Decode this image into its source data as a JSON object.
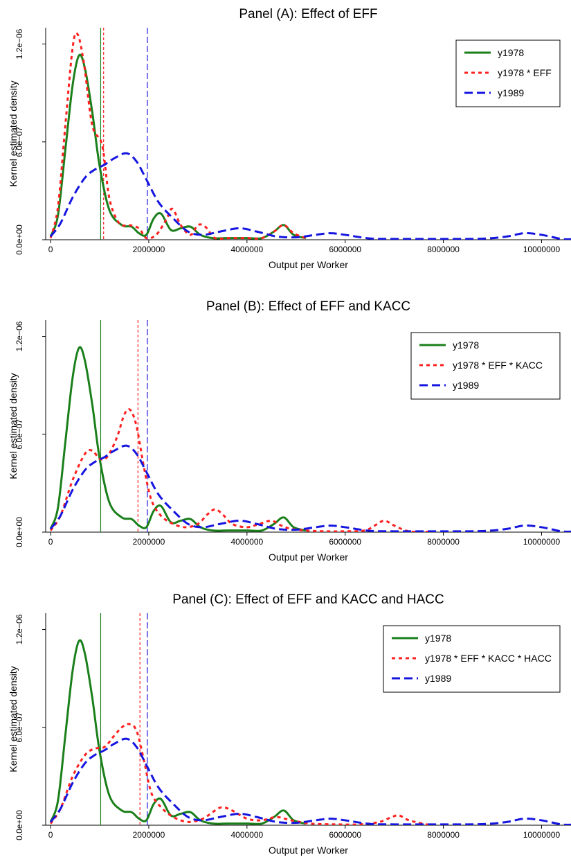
{
  "chart_data": [
    {
      "type": "line",
      "title": "Panel (A): Effect of EFF",
      "xlabel": "Output per Worker",
      "ylabel": "Kernel estimated density",
      "xlim": [
        -100000,
        10600000
      ],
      "ylim": [
        0,
        1.3e-06
      ],
      "xticks": [
        0,
        2000000,
        4000000,
        6000000,
        8000000,
        10000000
      ],
      "xtick_labels": [
        "0",
        "2000000",
        "4000000",
        "6000000",
        "8000000",
        "10000000"
      ],
      "yticks": [
        0,
        6e-07,
        1.2e-06
      ],
      "ytick_labels": [
        "0.0e+00",
        "6.0e−07",
        "1.2e−06"
      ],
      "legend_position": "top-right",
      "grid": false,
      "series": [
        {
          "name": "y1978",
          "color": "#1a7f1a",
          "dash": "solid",
          "x": [
            0,
            150000,
            300000,
            450000,
            580000,
            700000,
            850000,
            1000000,
            1200000,
            1450000,
            1650000,
            1800000,
            1950000,
            2100000,
            2250000,
            2450000,
            2650000,
            2850000,
            3050000,
            3300000,
            3600000,
            4000000,
            4300000,
            4550000,
            4750000,
            4950000,
            5200000
          ],
          "y": [
            2e-08,
            1.5e-07,
            5.5e-07,
            9.5e-07,
            1.13e-06,
            1.05e-06,
            7.8e-07,
            4.5e-07,
            1.8e-07,
            9e-08,
            8e-08,
            4e-08,
            3e-08,
            1.3e-07,
            1.6e-07,
            6e-08,
            7e-08,
            8e-08,
            3e-08,
            1e-08,
            1e-08,
            1e-08,
            1e-08,
            5e-08,
            9e-08,
            3e-08,
            1e-08
          ]
        },
        {
          "name": "y1978 * EFF",
          "color": "#ff2020",
          "dash": "dotted",
          "x": [
            0,
            150000,
            300000,
            450000,
            550000,
            680000,
            850000,
            1050000,
            1200000,
            1400000,
            1600000,
            1800000,
            1950000,
            2150000,
            2350000,
            2480000,
            2650000,
            2850000,
            3000000,
            3150000,
            3350000,
            3600000,
            4000000,
            4300000,
            4550000,
            4750000,
            4950000,
            5200000
          ],
          "y": [
            1e-08,
            2e-07,
            7e-07,
            1.18e-06,
            1.26e-06,
            1.08e-06,
            7e-07,
            5.8e-07,
            2.5e-07,
            1e-07,
            9e-08,
            7e-08,
            1e-08,
            3e-08,
            1.2e-07,
            1.9e-07,
            9e-08,
            3e-08,
            9e-08,
            8e-08,
            1e-08,
            1e-08,
            1e-08,
            1e-08,
            5e-08,
            9e-08,
            4e-08,
            1e-08
          ]
        },
        {
          "name": "y1989",
          "color": "#1515e0",
          "dash": "dashed",
          "x": [
            0,
            200000,
            450000,
            700000,
            900000,
            1100000,
            1300000,
            1550000,
            1750000,
            1950000,
            2200000,
            2500000,
            2800000,
            3100000,
            3450000,
            3850000,
            4200000,
            4600000,
            5000000,
            5400000,
            5700000,
            6000000,
            6500000,
            7000000,
            7500000,
            8000000,
            8500000,
            8900000,
            9300000,
            9650000,
            10000000,
            10400000,
            10600000
          ],
          "y": [
            2e-08,
            1e-07,
            2.6e-07,
            3.8e-07,
            4.3e-07,
            4.6e-07,
            5e-07,
            5.3e-07,
            4.8e-07,
            3.7e-07,
            2.3e-07,
            1.3e-07,
            5e-08,
            3e-08,
            5e-08,
            7e-08,
            5e-08,
            2e-08,
            1.5e-08,
            3e-08,
            4e-08,
            3e-08,
            8e-09,
            5e-09,
            5e-09,
            5e-09,
            5e-09,
            8e-09,
            2e-08,
            4e-08,
            3e-08,
            5e-09,
            3e-09
          ]
        }
      ],
      "vlines": [
        {
          "x": 1020000,
          "color": "#1a7f1a",
          "dash": "solid"
        },
        {
          "x": 1080000,
          "color": "#ff2020",
          "dash": "dotted"
        },
        {
          "x": 1970000,
          "color": "#1515e0",
          "dash": "dashed"
        }
      ]
    },
    {
      "type": "line",
      "title": "Panel (B): Effect of EFF and KACC",
      "xlabel": "Output per Worker",
      "ylabel": "Kernel estimated density",
      "xlim": [
        -100000,
        10600000
      ],
      "ylim": [
        0,
        1.3e-06
      ],
      "xticks": [
        0,
        2000000,
        4000000,
        6000000,
        8000000,
        10000000
      ],
      "xtick_labels": [
        "0",
        "2000000",
        "4000000",
        "6000000",
        "8000000",
        "10000000"
      ],
      "yticks": [
        0,
        6e-07,
        1.2e-06
      ],
      "ytick_labels": [
        "0.0e+00",
        "6.0e−07",
        "1.2e−06"
      ],
      "legend_position": "top-right",
      "grid": false,
      "series": [
        {
          "name": "y1978",
          "color": "#1a7f1a",
          "dash": "solid",
          "x": [
            0,
            150000,
            300000,
            450000,
            580000,
            700000,
            850000,
            1000000,
            1200000,
            1450000,
            1650000,
            1800000,
            1950000,
            2100000,
            2250000,
            2450000,
            2650000,
            2850000,
            3050000,
            3300000,
            3600000,
            4000000,
            4300000,
            4550000,
            4750000,
            4950000,
            5200000
          ],
          "y": [
            2e-08,
            1.5e-07,
            5.5e-07,
            9.5e-07,
            1.13e-06,
            1.05e-06,
            7.8e-07,
            4.5e-07,
            1.8e-07,
            9e-08,
            8e-08,
            4e-08,
            3e-08,
            1.3e-07,
            1.6e-07,
            6e-08,
            7e-08,
            8e-08,
            3e-08,
            1e-08,
            1e-08,
            1e-08,
            1e-08,
            5e-08,
            9e-08,
            3e-08,
            1e-08
          ]
        },
        {
          "name": "y1978 * EFF * KACC",
          "color": "#ff2020",
          "dash": "dotted",
          "x": [
            0,
            200000,
            450000,
            700000,
            850000,
            1000000,
            1150000,
            1350000,
            1500000,
            1620000,
            1750000,
            1900000,
            2050000,
            2250000,
            2500000,
            2750000,
            3000000,
            3200000,
            3350000,
            3500000,
            3700000,
            4000000,
            4250000,
            4500000,
            4700000,
            4900000,
            5200000,
            5600000,
            6000000,
            6400000,
            6600000,
            6800000,
            7000000,
            7300000,
            7700000
          ],
          "y": [
            1e-08,
            1e-07,
            3.2e-07,
            4.8e-07,
            5e-07,
            4.5e-07,
            4.6e-07,
            5.8e-07,
            7.2e-07,
            7.5e-07,
            6.5e-07,
            4e-07,
            2e-07,
            1e-07,
            5e-08,
            3e-08,
            5e-08,
            1.1e-07,
            1.4e-07,
            1.1e-07,
            5e-08,
            3e-08,
            5e-08,
            7e-08,
            4e-08,
            2e-08,
            1e-08,
            5e-09,
            5e-09,
            1e-08,
            4e-08,
            7e-08,
            4e-08,
            5e-09,
            2e-09
          ]
        },
        {
          "name": "y1989",
          "color": "#1515e0",
          "dash": "dashed",
          "x": [
            0,
            200000,
            450000,
            700000,
            900000,
            1100000,
            1300000,
            1550000,
            1750000,
            1950000,
            2200000,
            2500000,
            2800000,
            3100000,
            3450000,
            3850000,
            4200000,
            4600000,
            5000000,
            5400000,
            5700000,
            6000000,
            6500000,
            7000000,
            7500000,
            8000000,
            8500000,
            8900000,
            9300000,
            9650000,
            10000000,
            10400000,
            10600000
          ],
          "y": [
            2e-08,
            1e-07,
            2.6e-07,
            3.8e-07,
            4.3e-07,
            4.6e-07,
            5e-07,
            5.3e-07,
            4.8e-07,
            3.7e-07,
            2.3e-07,
            1.3e-07,
            5e-08,
            3e-08,
            5e-08,
            7e-08,
            5e-08,
            2e-08,
            1.5e-08,
            3e-08,
            4e-08,
            3e-08,
            8e-09,
            5e-09,
            5e-09,
            5e-09,
            5e-09,
            8e-09,
            2e-08,
            4e-08,
            3e-08,
            5e-09,
            3e-09
          ]
        }
      ],
      "vlines": [
        {
          "x": 1020000,
          "color": "#1a7f1a",
          "dash": "solid"
        },
        {
          "x": 1780000,
          "color": "#ff2020",
          "dash": "dotted"
        },
        {
          "x": 1970000,
          "color": "#1515e0",
          "dash": "dashed"
        }
      ]
    },
    {
      "type": "line",
      "title": "Panel (C): Effect of EFF and KACC and HACC",
      "xlabel": "Output per Worker",
      "ylabel": "Kernel estimated density",
      "xlim": [
        -100000,
        10600000
      ],
      "ylim": [
        0,
        1.3e-06
      ],
      "xticks": [
        0,
        2000000,
        4000000,
        6000000,
        8000000,
        10000000
      ],
      "xtick_labels": [
        "0",
        "2000000",
        "4000000",
        "6000000",
        "8000000",
        "10000000"
      ],
      "yticks": [
        0,
        6e-07,
        1.2e-06
      ],
      "ytick_labels": [
        "0.0e+00",
        "6.0e−07",
        "1.2e−06"
      ],
      "legend_position": "top-right",
      "grid": false,
      "series": [
        {
          "name": "y1978",
          "color": "#1a7f1a",
          "dash": "solid",
          "x": [
            0,
            150000,
            300000,
            450000,
            580000,
            700000,
            850000,
            1000000,
            1200000,
            1450000,
            1650000,
            1800000,
            1950000,
            2100000,
            2250000,
            2450000,
            2650000,
            2850000,
            3050000,
            3300000,
            3600000,
            4000000,
            4300000,
            4550000,
            4750000,
            4950000,
            5200000
          ],
          "y": [
            2e-08,
            1.5e-07,
            5.5e-07,
            9.5e-07,
            1.13e-06,
            1.05e-06,
            7.8e-07,
            4.5e-07,
            1.8e-07,
            9e-08,
            8e-08,
            4e-08,
            3e-08,
            1.3e-07,
            1.6e-07,
            6e-08,
            7e-08,
            8e-08,
            3e-08,
            1e-08,
            1e-08,
            1e-08,
            1e-08,
            5e-08,
            9e-08,
            3e-08,
            1e-08
          ]
        },
        {
          "name": "y1978 * EFF * KACC * HACC",
          "color": "#ff2020",
          "dash": "dotted",
          "x": [
            0,
            200000,
            450000,
            700000,
            900000,
            1100000,
            1300000,
            1450000,
            1600000,
            1750000,
            1900000,
            2050000,
            2250000,
            2500000,
            2800000,
            3100000,
            3350000,
            3500000,
            3700000,
            4000000,
            4300000,
            4600000,
            4900000,
            5300000,
            5800000,
            6300000,
            6700000,
            6950000,
            7100000,
            7300000,
            7700000
          ],
          "y": [
            1e-08,
            1e-07,
            3e-07,
            4.3e-07,
            4.7e-07,
            4.8e-07,
            5.5e-07,
            6e-07,
            6.2e-07,
            5.8e-07,
            4e-07,
            2e-07,
            1.1e-07,
            5e-08,
            2e-08,
            4e-08,
            9e-08,
            1.1e-07,
            9e-08,
            4e-08,
            3e-08,
            5e-08,
            3e-08,
            1e-08,
            5e-09,
            5e-09,
            2e-08,
            5e-08,
            6e-08,
            3e-08,
            2e-09
          ]
        },
        {
          "name": "y1989",
          "color": "#1515e0",
          "dash": "dashed",
          "x": [
            0,
            200000,
            450000,
            700000,
            900000,
            1100000,
            1300000,
            1550000,
            1750000,
            1950000,
            2200000,
            2500000,
            2800000,
            3100000,
            3450000,
            3850000,
            4200000,
            4600000,
            5000000,
            5400000,
            5700000,
            6000000,
            6500000,
            7000000,
            7500000,
            8000000,
            8500000,
            8900000,
            9300000,
            9650000,
            10000000,
            10400000,
            10600000
          ],
          "y": [
            2e-08,
            1e-07,
            2.6e-07,
            3.8e-07,
            4.3e-07,
            4.6e-07,
            5e-07,
            5.3e-07,
            4.8e-07,
            3.7e-07,
            2.3e-07,
            1.3e-07,
            5e-08,
            3e-08,
            5e-08,
            7e-08,
            5e-08,
            2e-08,
            1.5e-08,
            3e-08,
            4e-08,
            3e-08,
            8e-09,
            5e-09,
            5e-09,
            5e-09,
            5e-09,
            8e-09,
            2e-08,
            4e-08,
            3e-08,
            5e-09,
            3e-09
          ]
        }
      ],
      "vlines": [
        {
          "x": 1020000,
          "color": "#1a7f1a",
          "dash": "solid"
        },
        {
          "x": 1820000,
          "color": "#ff2020",
          "dash": "dotted"
        },
        {
          "x": 1970000,
          "color": "#1515e0",
          "dash": "dashed"
        }
      ]
    }
  ]
}
